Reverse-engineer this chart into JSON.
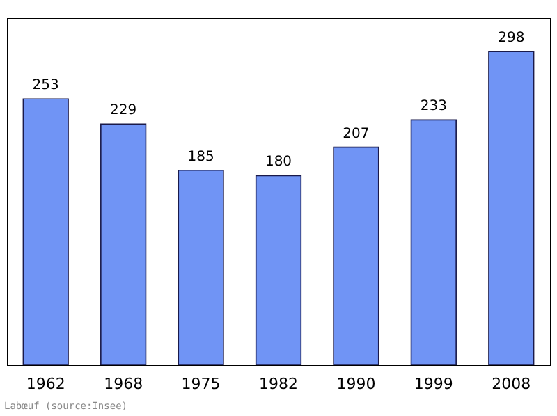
{
  "chart_data": {
    "type": "bar",
    "categories": [
      "1962",
      "1968",
      "1975",
      "1982",
      "1990",
      "1999",
      "2008"
    ],
    "values": [
      253,
      229,
      185,
      180,
      207,
      233,
      298
    ],
    "color": "#7094f5",
    "ylim": [
      0,
      330
    ],
    "data_labels": true,
    "grid": false,
    "annotations": [
      "Labœuf  (source:Insee)"
    ]
  }
}
